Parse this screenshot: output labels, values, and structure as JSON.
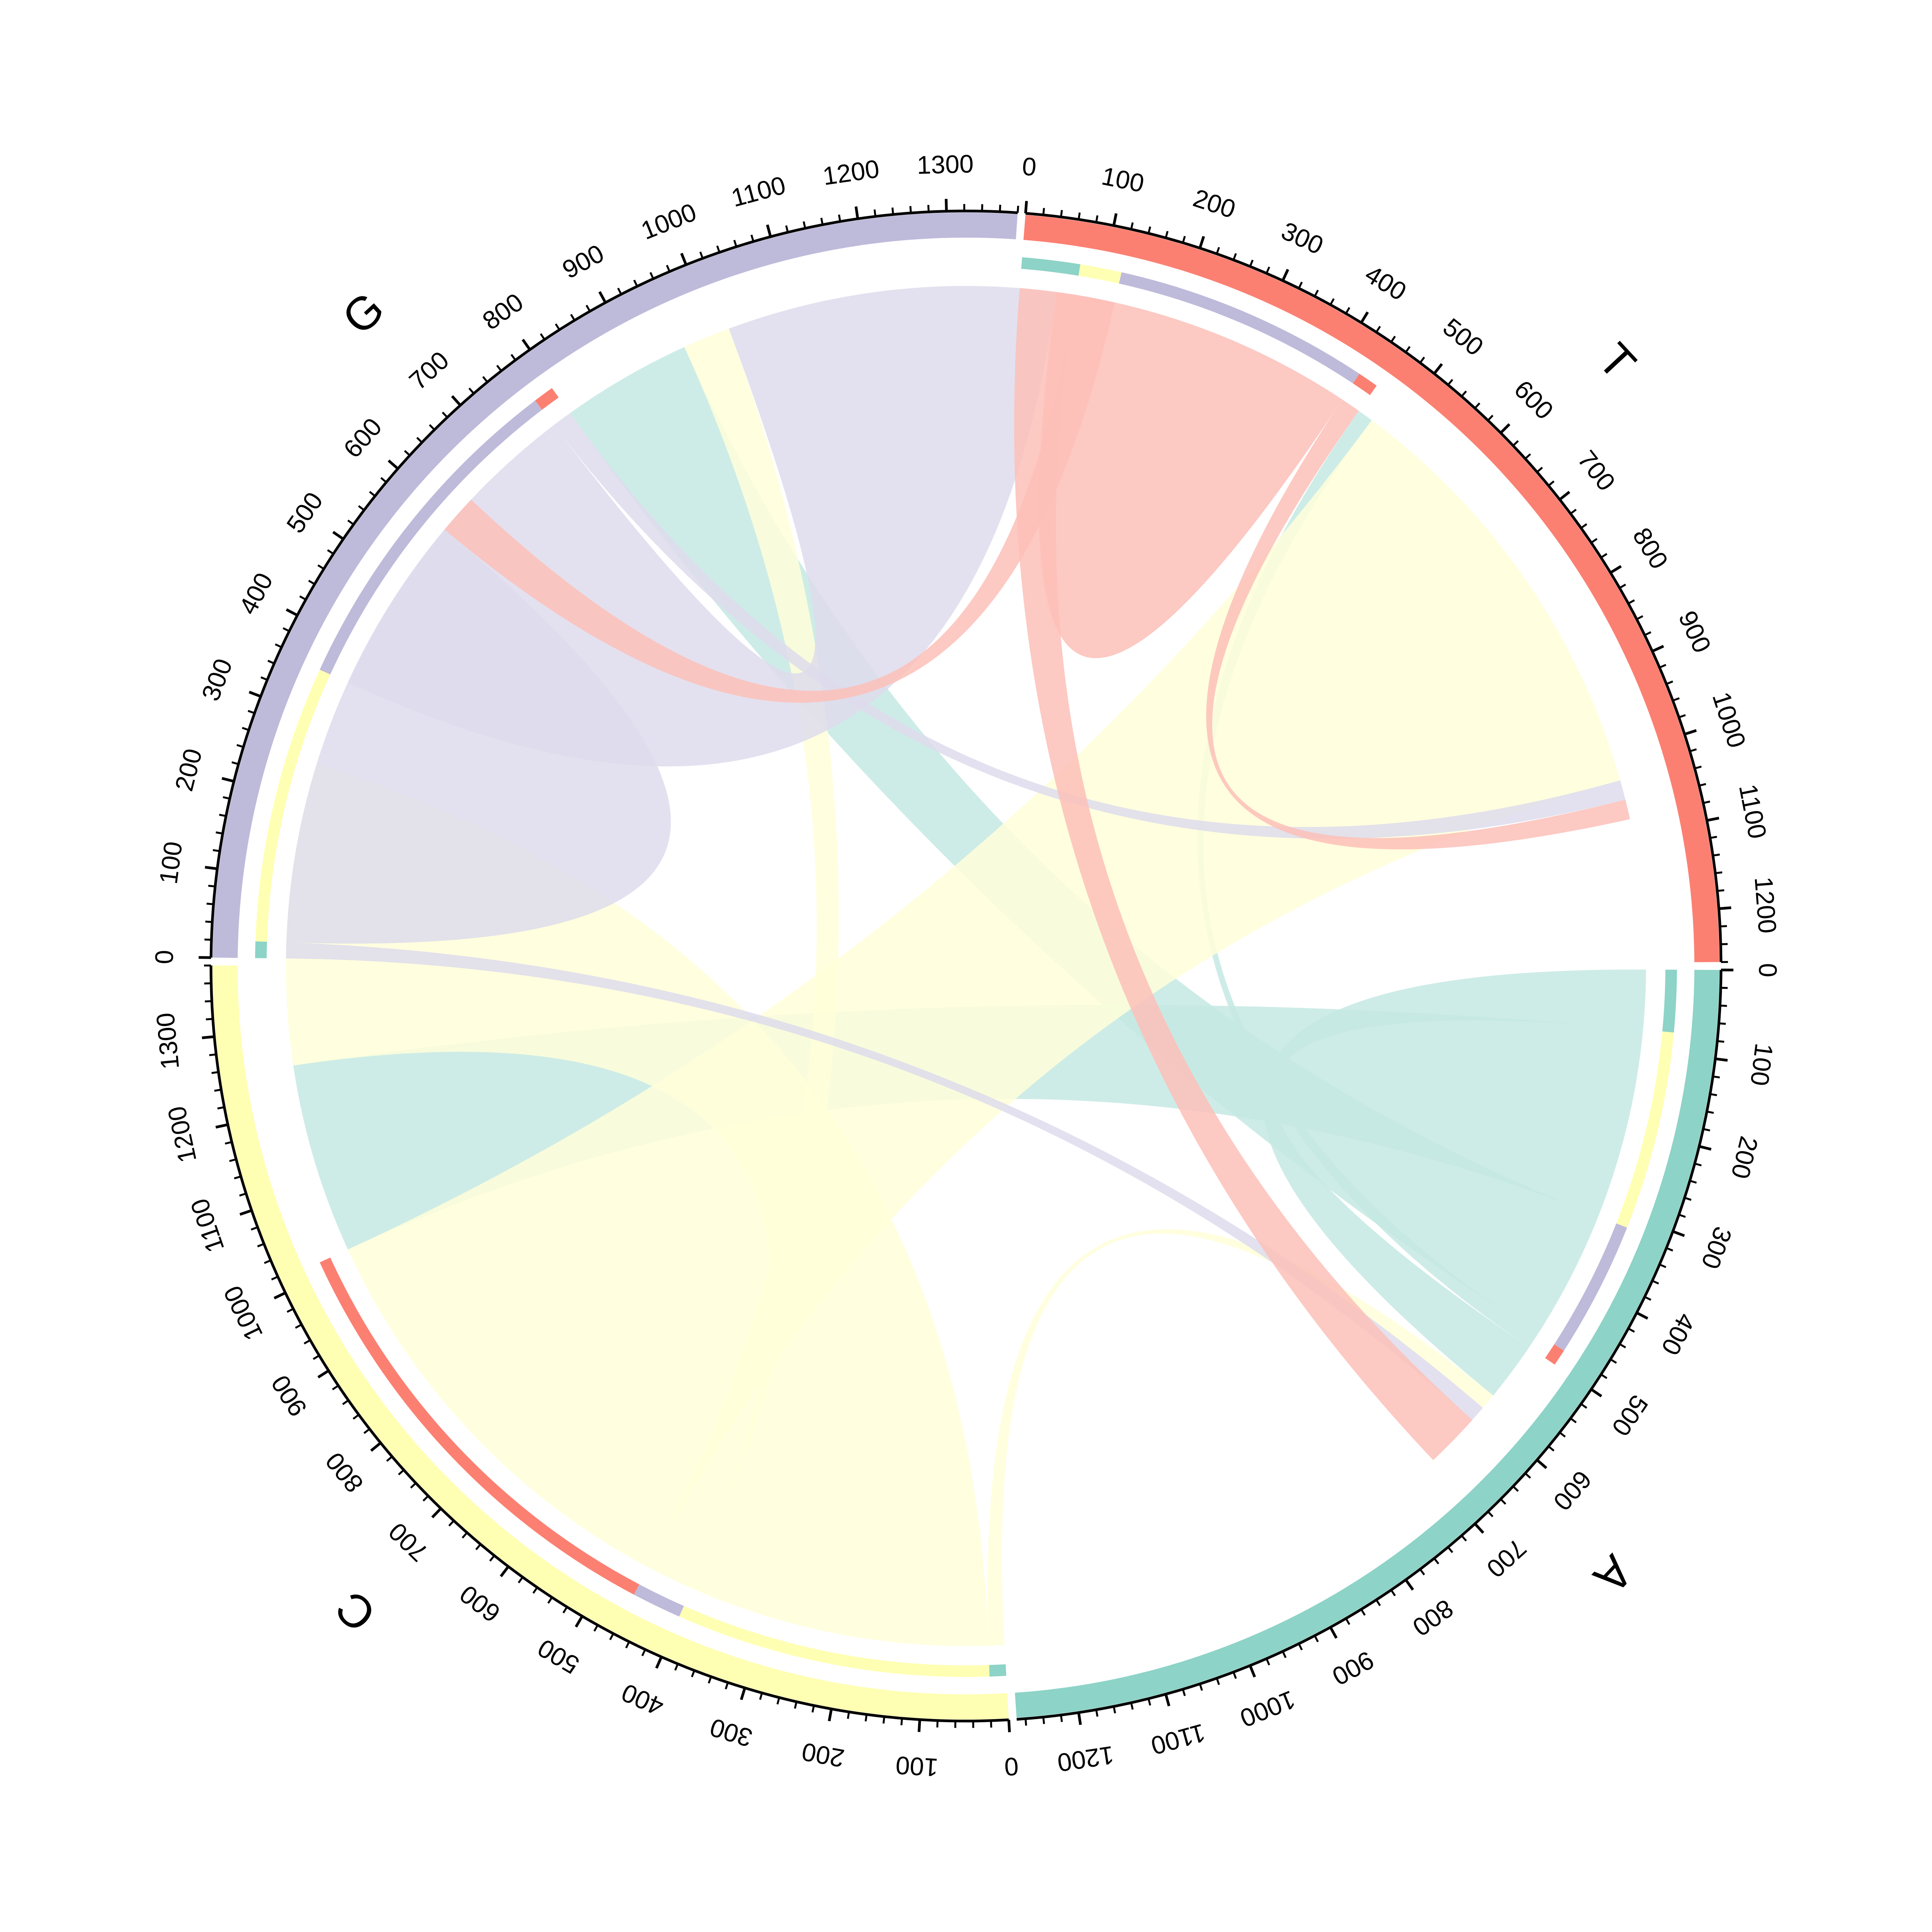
{
  "chart_data": {
    "type": "chord",
    "title": "",
    "tick_step": 100,
    "grid": false,
    "sectors": [
      {
        "name": "A",
        "total": 1270,
        "color": "#8DD3C7",
        "transparent_color": "#C6E9E3"
      },
      {
        "name": "C",
        "total": 1380,
        "color": "#FFFFB3",
        "transparent_color": "#FFFFD9"
      },
      {
        "name": "G",
        "total": 1380,
        "color": "#BEBADA",
        "transparent_color": "#DEDCEC"
      },
      {
        "name": "T",
        "total": 1260,
        "color": "#FB8072",
        "transparent_color": "#FDBFB8"
      }
    ],
    "links": [
      {
        "from": "A",
        "to": "A",
        "value": 75
      },
      {
        "from": "A",
        "to": "C",
        "value": 240
      },
      {
        "from": "A",
        "to": "G",
        "value": 165
      },
      {
        "from": "A",
        "to": "T",
        "value": 20
      },
      {
        "from": "C",
        "to": "A",
        "value": 20
      },
      {
        "from": "C",
        "to": "C",
        "value": 380
      },
      {
        "from": "C",
        "to": "G",
        "value": 60
      },
      {
        "from": "C",
        "to": "T",
        "value": 555
      },
      {
        "from": "G",
        "to": "A",
        "value": 20
      },
      {
        "from": "G",
        "to": "C",
        "value": 335
      },
      {
        "from": "G",
        "to": "G",
        "value": 415
      },
      {
        "from": "G",
        "to": "T",
        "value": 25
      },
      {
        "from": "T",
        "to": "A",
        "value": 70
      },
      {
        "from": "T",
        "to": "C",
        "value": 50
      },
      {
        "from": "T",
        "to": "G",
        "value": 310
      },
      {
        "from": "T",
        "to": "T",
        "value": 25
      }
    ]
  }
}
